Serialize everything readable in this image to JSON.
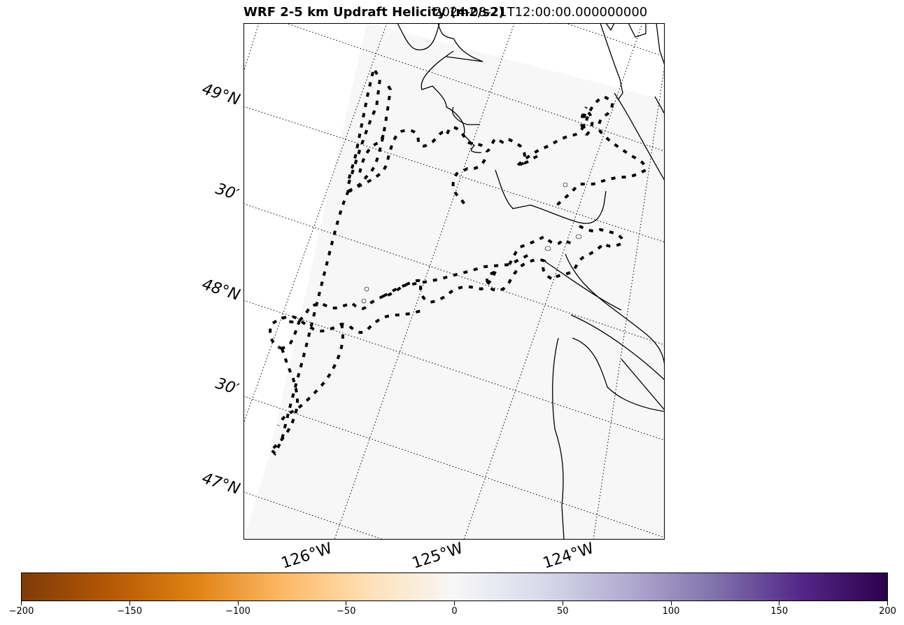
{
  "title": {
    "left": "WRF 2-5 km Updraft Helicity (m2/s2)",
    "right": "2024-08-21T12:00:00.000000000"
  },
  "map": {
    "lat_labels": [
      "49°N",
      "30′",
      "48°N",
      "30′",
      "47°N"
    ],
    "lon_labels": [
      "126°W",
      "125°W",
      "124°W"
    ],
    "background_color": "#f7f7f7"
  },
  "colorbar": {
    "min": -200,
    "max": 200,
    "colormap": "PuOr",
    "colors": [
      "#7f3b08",
      "#b35806",
      "#e08214",
      "#fdb863",
      "#fee0b6",
      "#f7f7f7",
      "#d8daeb",
      "#b2abd2",
      "#8073ac",
      "#542788",
      "#2d004b"
    ],
    "tick_labels": [
      "−200",
      "−150",
      "−100",
      "−50",
      "0",
      "50",
      "100",
      "150",
      "200"
    ]
  }
}
